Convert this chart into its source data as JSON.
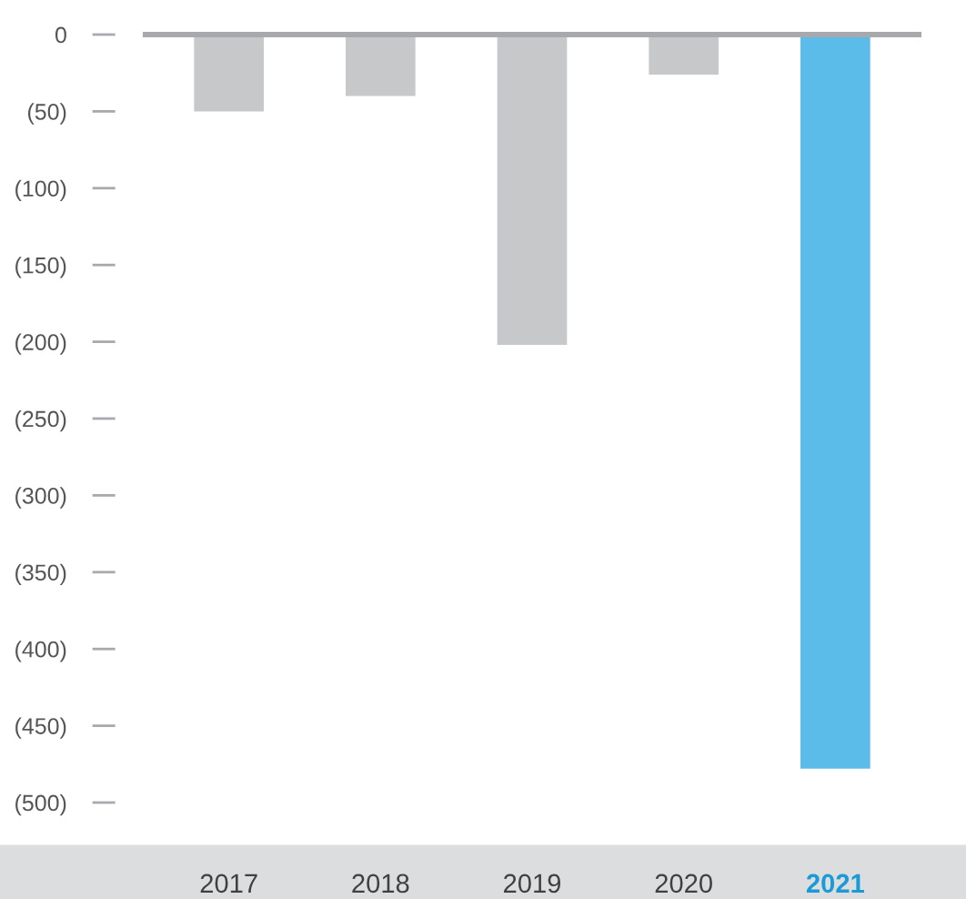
{
  "chart_data": {
    "type": "bar",
    "categories": [
      "2017",
      "2018",
      "2019",
      "2020",
      "2021"
    ],
    "values": [
      -50,
      -40,
      -202,
      -26,
      -478
    ],
    "colors": [
      "#c7c8ca",
      "#c7c8ca",
      "#c7c8ca",
      "#c7c8ca",
      "#5bbce9"
    ],
    "ylim": [
      -500,
      0
    ],
    "yticks": [
      0,
      {
        "value": -50,
        "label": "(50)"
      },
      {
        "value": -100,
        "label": "(100)"
      },
      {
        "value": -150,
        "label": "(150)"
      },
      {
        "value": -200,
        "label": "(200)"
      },
      {
        "value": -250,
        "label": "(250)"
      },
      {
        "value": -300,
        "label": "(300)"
      },
      {
        "value": -350,
        "label": "(350)"
      },
      {
        "value": -400,
        "label": "(400)"
      },
      {
        "value": -450,
        "label": "(450)"
      },
      {
        "value": -500,
        "label": "(500)"
      }
    ],
    "grid": false
  }
}
